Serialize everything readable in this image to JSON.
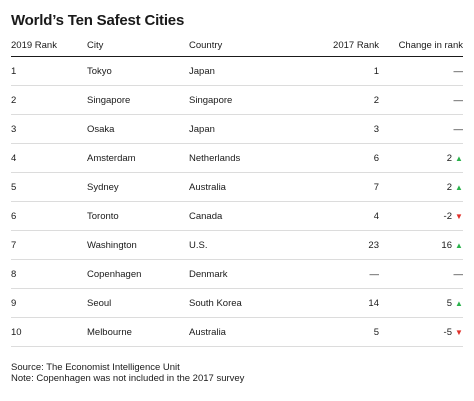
{
  "title": "World’s Ten Safest Cities",
  "columns": [
    "2019 Rank",
    "City",
    "Country",
    "2017 Rank",
    "Change in rank"
  ],
  "rows": [
    {
      "rank": "1",
      "city": "Tokyo",
      "country": "Japan",
      "prev": "1",
      "change": "—",
      "dir": "none"
    },
    {
      "rank": "2",
      "city": "Singapore",
      "country": "Singapore",
      "prev": "2",
      "change": "—",
      "dir": "none"
    },
    {
      "rank": "3",
      "city": "Osaka",
      "country": "Japan",
      "prev": "3",
      "change": "—",
      "dir": "none"
    },
    {
      "rank": "4",
      "city": "Amsterdam",
      "country": "Netherlands",
      "prev": "6",
      "change": "2",
      "dir": "up"
    },
    {
      "rank": "5",
      "city": "Sydney",
      "country": "Australia",
      "prev": "7",
      "change": "2",
      "dir": "up"
    },
    {
      "rank": "6",
      "city": "Toronto",
      "country": "Canada",
      "prev": "4",
      "change": "-2",
      "dir": "down"
    },
    {
      "rank": "7",
      "city": "Washington",
      "country": "U.S.",
      "prev": "23",
      "change": "16",
      "dir": "up"
    },
    {
      "rank": "8",
      "city": "Copenhagen",
      "country": "Denmark",
      "prev": "—",
      "change": "—",
      "dir": "none"
    },
    {
      "rank": "9",
      "city": "Seoul",
      "country": "South Korea",
      "prev": "14",
      "change": "5",
      "dir": "up"
    },
    {
      "rank": "10",
      "city": "Melbourne",
      "country": "Australia",
      "prev": "5",
      "change": "-5",
      "dir": "down"
    }
  ],
  "arrows": {
    "up": "▲",
    "down": "▼"
  },
  "colors": {
    "up": "#2bb24c",
    "down": "#e0312b"
  },
  "footer": {
    "source": "Source: The Economist Intelligence Unit",
    "note": "Note: Copenhagen was not included in the 2017 survey"
  }
}
